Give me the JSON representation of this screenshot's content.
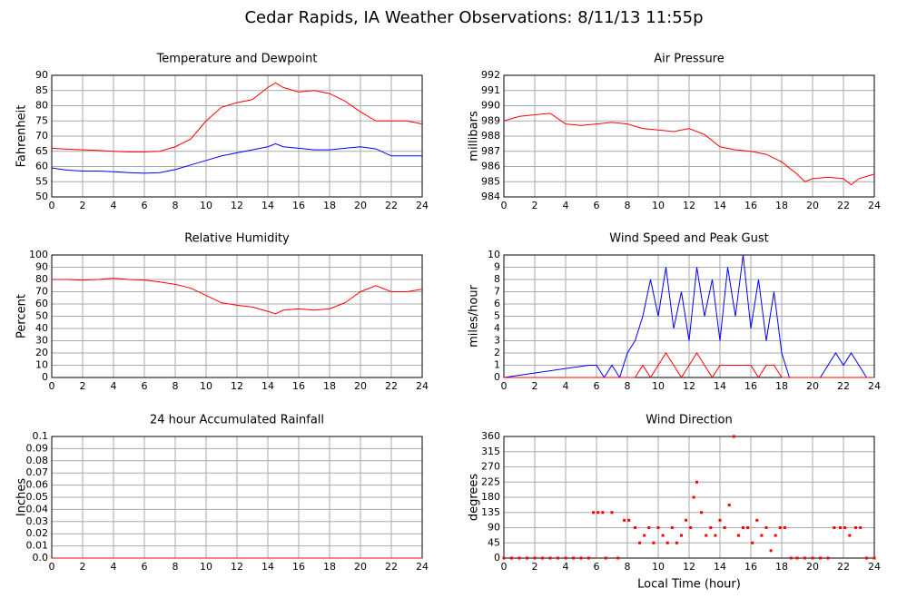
{
  "title": "Cedar Rapids, IA Weather Observations: 8/11/13 11:55p",
  "chart_data": [
    {
      "type": "line",
      "title": "Temperature and Dewpoint",
      "ylabel": "Fahrenheit",
      "x": [
        0,
        1,
        2,
        3,
        4,
        5,
        6,
        7,
        8,
        9,
        10,
        11,
        12,
        13,
        14,
        14.5,
        15,
        16,
        17,
        18,
        19,
        20,
        21,
        22,
        23,
        24
      ],
      "series": [
        {
          "name": "Temperature",
          "color": "#ff0000",
          "values": [
            66,
            65.7,
            65.5,
            65.3,
            65,
            64.8,
            64.8,
            65,
            66.5,
            69,
            75,
            79.5,
            81,
            82,
            86,
            87.5,
            86,
            84.5,
            85,
            84,
            81.5,
            78,
            75,
            75,
            75,
            74
          ]
        },
        {
          "name": "Dewpoint",
          "color": "#0000ff",
          "values": [
            59.5,
            58.8,
            58.5,
            58.5,
            58.3,
            58,
            57.8,
            58,
            59,
            60.5,
            62,
            63.5,
            64.5,
            65.5,
            66.5,
            67.5,
            66.5,
            66,
            65.5,
            65.5,
            66,
            66.5,
            65.8,
            63.5,
            63.5,
            63.5
          ]
        }
      ],
      "xlim": [
        0,
        24
      ],
      "xticks": [
        0,
        2,
        4,
        6,
        8,
        10,
        12,
        14,
        16,
        18,
        20,
        22,
        24
      ],
      "ylim": [
        50,
        90
      ],
      "yticks": [
        50,
        55,
        60,
        65,
        70,
        75,
        80,
        85,
        90
      ],
      "grid": true
    },
    {
      "type": "line",
      "title": "Air Pressure",
      "ylabel": "millibars",
      "x": [
        0,
        1,
        2,
        3,
        4,
        5,
        6,
        7,
        8,
        9,
        10,
        11,
        12,
        13,
        14,
        15,
        16,
        17,
        18,
        19,
        19.5,
        20,
        21,
        22,
        22.5,
        23,
        24
      ],
      "series": [
        {
          "name": "Pressure",
          "color": "#ff0000",
          "values": [
            989,
            989.3,
            989.4,
            989.5,
            988.8,
            988.7,
            988.8,
            988.9,
            988.8,
            988.5,
            988.4,
            988.3,
            988.5,
            988.1,
            987.3,
            987.1,
            987,
            986.8,
            986.3,
            985.5,
            985,
            985.2,
            985.3,
            985.2,
            984.8,
            985.2,
            985.5
          ]
        }
      ],
      "xlim": [
        0,
        24
      ],
      "xticks": [
        0,
        2,
        4,
        6,
        8,
        10,
        12,
        14,
        16,
        18,
        20,
        22,
        24
      ],
      "ylim": [
        984,
        992
      ],
      "yticks": [
        984,
        985,
        986,
        987,
        988,
        989,
        990,
        991,
        992
      ],
      "grid": true
    },
    {
      "type": "line",
      "title": "Relative Humidity",
      "ylabel": "Percent",
      "x": [
        0,
        1,
        2,
        3,
        4,
        5,
        6,
        7,
        8,
        9,
        10,
        11,
        12,
        13,
        14,
        14.5,
        15,
        16,
        17,
        18,
        19,
        20,
        21,
        22,
        23,
        24
      ],
      "series": [
        {
          "name": "Relative Humidity",
          "color": "#ff0000",
          "values": [
            80,
            80,
            79.5,
            80,
            81,
            80,
            79.5,
            78,
            76,
            73,
            67,
            61,
            59,
            57.5,
            54,
            52,
            55,
            56,
            55,
            56,
            61,
            70,
            75,
            70,
            70,
            72
          ]
        }
      ],
      "xlim": [
        0,
        24
      ],
      "xticks": [
        0,
        2,
        4,
        6,
        8,
        10,
        12,
        14,
        16,
        18,
        20,
        22,
        24
      ],
      "ylim": [
        0,
        100
      ],
      "yticks": [
        0,
        10,
        20,
        30,
        40,
        50,
        60,
        70,
        80,
        90,
        100
      ],
      "grid": true
    },
    {
      "type": "line",
      "title": "Wind Speed and Peak Gust",
      "ylabel": "miles/hour",
      "x": [
        0,
        5.5,
        6,
        6.5,
        7,
        7.5,
        8,
        8.5,
        9,
        9.5,
        10,
        10.5,
        11,
        11.5,
        12,
        12.5,
        13,
        13.5,
        14,
        14.5,
        15,
        15.5,
        16,
        16.5,
        17,
        17.5,
        18,
        18.5,
        20.5,
        21,
        21.5,
        22,
        22.5,
        23,
        23.5,
        24
      ],
      "series": [
        {
          "name": "Wind Speed",
          "color": "#0000ff",
          "values": [
            0,
            1,
            1,
            0,
            1,
            0,
            2,
            3,
            5,
            8,
            5,
            9,
            4,
            7,
            3,
            9,
            5,
            8,
            3,
            9,
            5,
            10,
            4,
            8,
            3,
            7,
            2,
            0,
            0,
            1,
            2,
            1,
            2,
            1,
            0,
            0
          ]
        },
        {
          "name": "Peak Gust",
          "color": "#ff0000",
          "values": [
            0,
            0,
            0,
            0,
            0,
            0,
            0,
            0,
            1,
            0,
            1,
            2,
            1,
            0,
            1,
            2,
            1,
            0,
            1,
            1,
            1,
            1,
            1,
            0,
            1,
            1,
            0,
            0,
            0,
            0,
            0,
            0,
            0,
            0,
            0,
            0
          ]
        }
      ],
      "xlim": [
        0,
        24
      ],
      "xticks": [
        0,
        2,
        4,
        6,
        8,
        10,
        12,
        14,
        16,
        18,
        20,
        22,
        24
      ],
      "ylim": [
        0,
        10
      ],
      "yticks": [
        0,
        1,
        2,
        3,
        4,
        5,
        6,
        7,
        8,
        9,
        10
      ],
      "grid": true
    },
    {
      "type": "line",
      "title": "24 hour Accumulated Rainfall",
      "ylabel": "Inches",
      "x": [
        0,
        24
      ],
      "series": [
        {
          "name": "Rainfall",
          "color": "#ff0000",
          "values": [
            0,
            0
          ]
        }
      ],
      "xlim": [
        0,
        24
      ],
      "xticks": [
        0,
        2,
        4,
        6,
        8,
        10,
        12,
        14,
        16,
        18,
        20,
        22,
        24
      ],
      "ylim": [
        0,
        0.1
      ],
      "yticks": [
        {
          "value": 0,
          "label": "0.0"
        },
        0.01,
        0.02,
        0.03,
        0.04,
        0.05,
        0.06,
        0.07,
        0.08,
        0.09,
        0.1
      ],
      "grid": true
    },
    {
      "type": "scatter",
      "title": "Wind Direction",
      "ylabel": "degrees",
      "xlabel": "Local Time (hour)",
      "color": "#ff0000",
      "x": [
        0,
        0.5,
        1,
        1.5,
        2,
        2.5,
        3,
        3.5,
        4,
        4.5,
        5,
        5.5,
        5.8,
        6.1,
        6.4,
        6.6,
        7,
        7.4,
        7.8,
        8.1,
        8.5,
        8.8,
        9.1,
        9.4,
        9.7,
        10,
        10.3,
        10.6,
        10.9,
        11.2,
        11.5,
        11.8,
        12.1,
        12.3,
        12.5,
        12.8,
        13.1,
        13.4,
        13.7,
        14,
        14.3,
        14.6,
        14.9,
        15.2,
        15.5,
        15.8,
        16.1,
        16.4,
        16.7,
        17,
        17.3,
        17.6,
        17.9,
        18.2,
        18.6,
        19,
        19.5,
        20,
        20.5,
        21,
        21.4,
        21.8,
        22.1,
        22.4,
        22.8,
        23.1,
        23.5,
        24
      ],
      "values": [
        0,
        0,
        0,
        0,
        0,
        0,
        0,
        0,
        0,
        0,
        0,
        0,
        135,
        135,
        135,
        0,
        135,
        0,
        112,
        112,
        90,
        45,
        67,
        90,
        45,
        90,
        67,
        45,
        90,
        45,
        67,
        112,
        90,
        180,
        225,
        135,
        67,
        90,
        67,
        112,
        90,
        157,
        360,
        67,
        90,
        90,
        45,
        112,
        67,
        90,
        22,
        67,
        90,
        90,
        0,
        0,
        0,
        0,
        0,
        0,
        90,
        90,
        90,
        67,
        90,
        90,
        0,
        0
      ],
      "xlim": [
        0,
        24
      ],
      "xticks": [
        0,
        2,
        4,
        6,
        8,
        10,
        12,
        14,
        16,
        18,
        20,
        22,
        24
      ],
      "ylim": [
        0,
        360
      ],
      "yticks": [
        0,
        45,
        90,
        135,
        180,
        225,
        270,
        315,
        360
      ],
      "grid": true
    }
  ]
}
